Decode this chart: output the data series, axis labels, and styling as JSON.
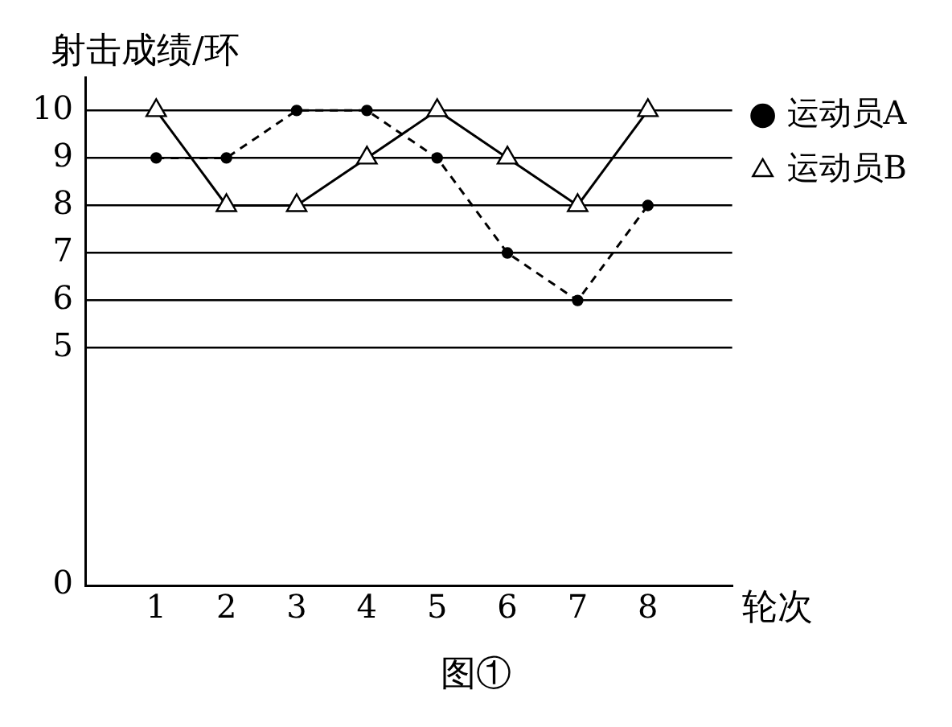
{
  "chart_data": {
    "type": "line",
    "xlabel": "轮次",
    "ylabel": "射击成绩/环",
    "x": [
      1,
      2,
      3,
      4,
      5,
      6,
      7,
      8
    ],
    "xlim": [
      0,
      9.2
    ],
    "xticks": [
      1,
      2,
      3,
      4,
      5,
      6,
      7,
      8
    ],
    "ylim": [
      0,
      10.7
    ],
    "yticks": [
      0,
      5,
      6,
      7,
      8,
      9,
      10
    ],
    "grid": "y",
    "legend": "top right",
    "annotations": [
      "图①"
    ],
    "series": [
      {
        "name": "运动员A",
        "color": "#000000",
        "values": [
          9,
          9,
          10,
          10,
          9,
          7,
          6,
          8
        ],
        "marker": "circle",
        "line_style": "dashed"
      },
      {
        "name": "运动员B",
        "color": "#000000",
        "values": [
          10,
          8,
          8,
          9,
          10,
          9,
          8,
          10
        ],
        "marker": "triangle",
        "line_style": "solid"
      }
    ]
  }
}
